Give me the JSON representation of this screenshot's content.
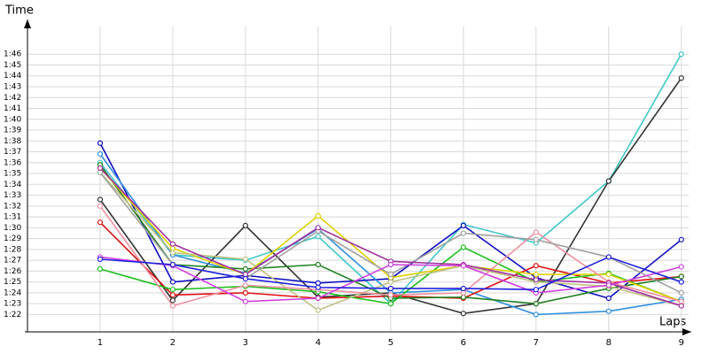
{
  "chart_data": {
    "type": "line",
    "x_label": "Laps",
    "y_label": "Time",
    "grid": true,
    "x": [
      1,
      2,
      3,
      4,
      5,
      6,
      7,
      8,
      9
    ],
    "xlim": [
      0,
      9.1
    ],
    "xticks": [
      1,
      2,
      3,
      4,
      5,
      6,
      7,
      8,
      9
    ],
    "ylim": [
      80.4,
      109.2
    ],
    "yticks": [
      {
        "value": 82,
        "label": "1:22"
      },
      {
        "value": 83,
        "label": "1:23"
      },
      {
        "value": 84,
        "label": "1:24"
      },
      {
        "value": 85,
        "label": "1:25"
      },
      {
        "value": 86,
        "label": "1:26"
      },
      {
        "value": 87,
        "label": "1:27"
      },
      {
        "value": 88,
        "label": "1:28"
      },
      {
        "value": 89,
        "label": "1:29"
      },
      {
        "value": 90,
        "label": "1:30"
      },
      {
        "value": 91,
        "label": "1:31"
      },
      {
        "value": 92,
        "label": "1:32"
      },
      {
        "value": 93,
        "label": "1:33"
      },
      {
        "value": 94,
        "label": "1:34"
      },
      {
        "value": 95,
        "label": "1:35"
      },
      {
        "value": 96,
        "label": "1:36"
      },
      {
        "value": 97,
        "label": "1:37"
      },
      {
        "value": 98,
        "label": "1:38"
      },
      {
        "value": 99,
        "label": "1:39"
      },
      {
        "value": 100,
        "label": "1:40"
      },
      {
        "value": 101,
        "label": "1:41"
      },
      {
        "value": 102,
        "label": "1:42"
      },
      {
        "value": 103,
        "label": "1:43"
      },
      {
        "value": 104,
        "label": "1:44"
      },
      {
        "value": 105,
        "label": "1:45"
      },
      {
        "value": 106,
        "label": "1:46"
      }
    ],
    "series": [
      {
        "color": "#40c8c8",
        "values": [
          96.0,
          87.5,
          87.0,
          89.2,
          83.0,
          90.3,
          88.6,
          94.3,
          106.0
        ]
      },
      {
        "color": "#333333",
        "values": [
          92.6,
          83.3,
          90.2,
          83.6,
          84.0,
          82.1,
          83.0,
          94.3,
          103.8
        ]
      },
      {
        "color": "#1010c0",
        "values": [
          97.8,
          85.0,
          85.6,
          84.9,
          85.3,
          90.2,
          85.4,
          83.5,
          88.9
        ]
      },
      {
        "color": "#3090e0",
        "values": [
          96.8,
          87.5,
          85.8,
          89.9,
          84.0,
          84.3,
          82.0,
          82.3,
          83.4
        ]
      },
      {
        "color": "#e01010",
        "values": [
          90.5,
          83.8,
          84.0,
          83.5,
          83.7,
          83.5,
          86.5,
          84.9,
          85.5
        ]
      },
      {
        "color": "#20c020",
        "values": [
          86.2,
          84.3,
          84.6,
          84.1,
          83.0,
          88.2,
          85.0,
          85.8,
          83.2
        ]
      },
      {
        "color": "#208020",
        "values": [
          95.8,
          86.6,
          86.2,
          86.6,
          83.5,
          83.6,
          83.0,
          84.4,
          85.5
        ]
      },
      {
        "color": "#e0d000",
        "values": [
          95.5,
          88.1,
          85.7,
          91.1,
          85.4,
          86.5,
          85.7,
          85.7,
          83.2
        ]
      },
      {
        "color": "#c0c080",
        "values": [
          95.1,
          87.7,
          87.1,
          82.4,
          85.0,
          86.5,
          85.0,
          84.6,
          82.8
        ]
      },
      {
        "color": "#f090a0",
        "values": [
          92.0,
          82.8,
          84.7,
          84.3,
          83.8,
          84.0,
          89.6,
          85.0,
          83.2
        ]
      },
      {
        "color": "#a0a0a0",
        "values": [
          95.1,
          86.6,
          85.3,
          89.7,
          85.7,
          89.5,
          88.9,
          87.3,
          84.0
        ]
      },
      {
        "color": "#a030a0",
        "values": [
          95.5,
          88.5,
          85.7,
          90.0,
          86.9,
          86.6,
          85.2,
          84.9,
          82.8
        ]
      },
      {
        "color": "#d040e0",
        "values": [
          87.3,
          86.5,
          83.2,
          83.5,
          86.6,
          86.5,
          84.0,
          84.7,
          86.4
        ]
      },
      {
        "color": "#2020e0",
        "values": [
          87.1,
          86.6,
          85.3,
          84.5,
          84.4,
          84.4,
          84.3,
          87.3,
          85.0
        ]
      }
    ]
  }
}
